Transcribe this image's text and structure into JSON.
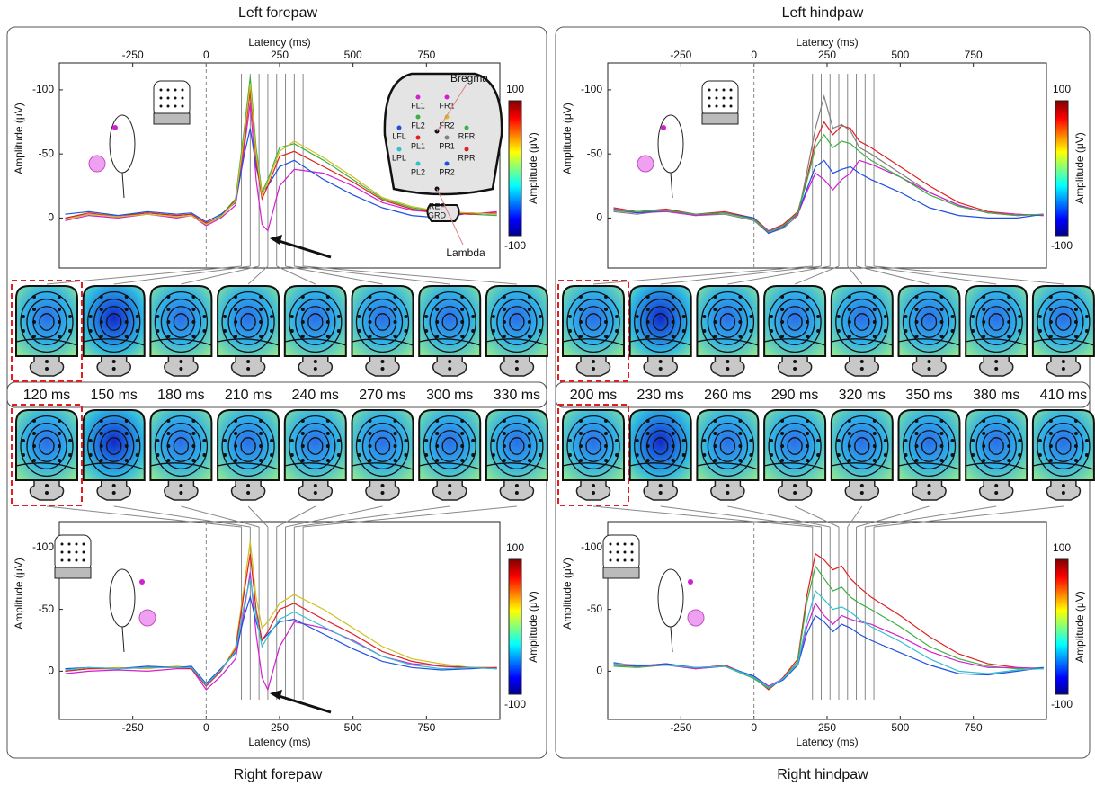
{
  "chart_data": [
    {
      "type": "line",
      "title": "Left forepaw",
      "xlabel": "Latency (ms)",
      "ylabel": "Amplitude (μV)",
      "xlim": [
        -500,
        1000
      ],
      "ylim": [
        -121,
        39
      ],
      "y_inverted": true,
      "xticks": [
        -250,
        0,
        250,
        500,
        750
      ],
      "yticks": [
        -100,
        -50,
        0
      ],
      "x": [
        -480,
        -400,
        -300,
        -200,
        -100,
        -50,
        0,
        50,
        100,
        130,
        150,
        170,
        190,
        210,
        250,
        300,
        400,
        500,
        600,
        700,
        800,
        900,
        990
      ],
      "series": [
        {
          "color": "#3cb043",
          "values": [
            0,
            -3,
            -2,
            -4,
            -2,
            -3,
            5,
            -2,
            -15,
            -70,
            -110,
            -55,
            -20,
            -30,
            -55,
            -58,
            -45,
            -30,
            -15,
            -8,
            -5,
            -3,
            -2
          ]
        },
        {
          "color": "#d020d0",
          "values": [
            2,
            -2,
            0,
            -3,
            0,
            -2,
            6,
            0,
            -10,
            -55,
            -90,
            -30,
            5,
            10,
            -25,
            -38,
            -35,
            -25,
            -12,
            -6,
            -4,
            -3,
            -5
          ]
        },
        {
          "color": "#2050e0",
          "values": [
            -3,
            -5,
            -2,
            -5,
            -3,
            -4,
            3,
            -3,
            -12,
            -50,
            -70,
            -40,
            -20,
            -25,
            -40,
            -45,
            -30,
            -18,
            -8,
            -2,
            0,
            -4,
            -3
          ]
        },
        {
          "color": "#e02020",
          "values": [
            0,
            -4,
            -1,
            -4,
            -2,
            -3,
            4,
            -1,
            -14,
            -60,
            -100,
            -45,
            -15,
            -25,
            -48,
            -52,
            -40,
            -28,
            -14,
            -7,
            -4,
            -3,
            -4
          ]
        },
        {
          "color": "#d0c020",
          "values": [
            1,
            -3,
            -1,
            -3,
            -1,
            -2,
            5,
            -1,
            -13,
            -65,
            -105,
            -50,
            -18,
            -28,
            -52,
            -60,
            -47,
            -32,
            -16,
            -9,
            -5,
            -4,
            -3
          ]
        }
      ],
      "colorbar": {
        "label": "Amplitude (μV)",
        "clim": [
          -100,
          100
        ],
        "ticks": [
          100,
          -100
        ]
      },
      "maps": [
        {
          "value": 120,
          "label": "120 ms"
        },
        {
          "value": 150,
          "label": "150 ms"
        },
        {
          "value": 180,
          "label": "180 ms"
        },
        {
          "value": 210,
          "label": "210 ms"
        },
        {
          "value": 240,
          "label": "240 ms"
        },
        {
          "value": 270,
          "label": "270 ms"
        },
        {
          "value": 300,
          "label": "300 ms"
        },
        {
          "value": 330,
          "label": "330 ms"
        }
      ],
      "electrodes": [
        {
          "name": "FL1",
          "color": "#d020d0"
        },
        {
          "name": "FR1",
          "color": "#d020d0"
        },
        {
          "name": "FL2",
          "color": "#3cb043"
        },
        {
          "name": "FR2",
          "color": "#d0c020"
        },
        {
          "name": "LFL",
          "color": "#2050e0"
        },
        {
          "name": "RFR",
          "color": "#3cb043"
        },
        {
          "name": "PL1",
          "color": "#e02020"
        },
        {
          "name": "PR1",
          "color": "#808080"
        },
        {
          "name": "LPL",
          "color": "#30c0d0"
        },
        {
          "name": "RPR",
          "color": "#e02020"
        },
        {
          "name": "PL2",
          "color": "#30c0d0"
        },
        {
          "name": "PR2",
          "color": "#2050e0"
        }
      ],
      "landmarks": [
        "Bregma",
        "Lambda",
        "REF",
        "GRD"
      ]
    },
    {
      "type": "line",
      "title": "Left hindpaw",
      "xlabel": "Latency (ms)",
      "ylabel": "Amplitude (μV)",
      "xlim": [
        -500,
        1000
      ],
      "ylim": [
        -121,
        39
      ],
      "y_inverted": true,
      "xticks": [
        -250,
        0,
        250,
        500,
        750
      ],
      "yticks": [
        -100,
        -50,
        0
      ],
      "x": [
        -480,
        -400,
        -300,
        -200,
        -100,
        0,
        50,
        100,
        150,
        180,
        210,
        240,
        270,
        300,
        330,
        360,
        400,
        500,
        600,
        700,
        800,
        900,
        990
      ],
      "series": [
        {
          "color": "#e02020",
          "values": [
            -8,
            -5,
            -7,
            -3,
            -5,
            0,
            10,
            5,
            -5,
            -30,
            -60,
            -75,
            -65,
            -72,
            -70,
            -60,
            -55,
            -40,
            -25,
            -12,
            -5,
            -3,
            -2
          ]
        },
        {
          "color": "#808080",
          "values": [
            -5,
            -3,
            -6,
            -2,
            -3,
            2,
            12,
            8,
            -2,
            -35,
            -70,
            -95,
            -70,
            -73,
            -68,
            -55,
            -50,
            -35,
            -20,
            -10,
            -4,
            -2,
            -3
          ]
        },
        {
          "color": "#d020d0",
          "values": [
            -6,
            -4,
            -5,
            -2,
            -4,
            1,
            10,
            6,
            -3,
            -20,
            -35,
            -30,
            -22,
            -30,
            -35,
            -45,
            -42,
            -32,
            -20,
            -10,
            -4,
            -3,
            -2
          ]
        },
        {
          "color": "#2050e0",
          "values": [
            -7,
            -4,
            -6,
            -3,
            -4,
            0,
            12,
            7,
            -4,
            -22,
            -40,
            -45,
            -35,
            -38,
            -40,
            -35,
            -30,
            -20,
            -8,
            -2,
            0,
            0,
            -3
          ]
        },
        {
          "color": "#3cb043",
          "values": [
            -6,
            -5,
            -6,
            -3,
            -4,
            1,
            11,
            6,
            -4,
            -28,
            -55,
            -65,
            -55,
            -60,
            -58,
            -52,
            -45,
            -32,
            -18,
            -9,
            -4,
            -2,
            -3
          ]
        }
      ],
      "colorbar": {
        "label": "Amplitude (μV)",
        "clim": [
          -100,
          100
        ],
        "ticks": [
          100,
          -100
        ]
      },
      "maps": [
        {
          "value": 200,
          "label": "200 ms"
        },
        {
          "value": 230,
          "label": "230 ms"
        },
        {
          "value": 260,
          "label": "260 ms"
        },
        {
          "value": 290,
          "label": "290 ms"
        },
        {
          "value": 320,
          "label": "320 ms"
        },
        {
          "value": 350,
          "label": "350 ms"
        },
        {
          "value": 380,
          "label": "380 ms"
        },
        {
          "value": 410,
          "label": "410 ms"
        }
      ]
    },
    {
      "type": "line",
      "title": "Right forepaw",
      "xlabel": "Latency (ms)",
      "ylabel": "Amplitude (μV)",
      "xlim": [
        -500,
        1000
      ],
      "ylim": [
        -121,
        39
      ],
      "y_inverted": true,
      "xticks": [
        -250,
        0,
        250,
        500,
        750
      ],
      "yticks": [
        -100,
        -50,
        0
      ],
      "x": [
        -480,
        -400,
        -300,
        -200,
        -100,
        -50,
        0,
        50,
        100,
        130,
        150,
        170,
        190,
        210,
        250,
        300,
        400,
        500,
        600,
        700,
        800,
        900,
        990
      ],
      "series": [
        {
          "color": "#d0c020",
          "values": [
            0,
            -2,
            -3,
            -2,
            -4,
            -3,
            12,
            0,
            -20,
            -70,
            -105,
            -60,
            -35,
            -40,
            -55,
            -62,
            -50,
            -35,
            -20,
            -10,
            -6,
            -3,
            -2
          ]
        },
        {
          "color": "#d020d0",
          "values": [
            2,
            0,
            -1,
            0,
            -2,
            -2,
            15,
            4,
            -10,
            -50,
            -80,
            -30,
            5,
            15,
            -20,
            -40,
            -35,
            -25,
            -12,
            -6,
            -4,
            -3,
            -2
          ]
        },
        {
          "color": "#2050e0",
          "values": [
            -2,
            -3,
            -2,
            -4,
            -3,
            -4,
            10,
            -2,
            -15,
            -45,
            -60,
            -40,
            -25,
            -30,
            -40,
            -42,
            -30,
            -18,
            -8,
            -3,
            -1,
            -2,
            -3
          ]
        },
        {
          "color": "#e02020",
          "values": [
            0,
            -2,
            -2,
            -3,
            -3,
            -2,
            12,
            0,
            -18,
            -65,
            -95,
            -50,
            -25,
            -32,
            -50,
            -55,
            -42,
            -30,
            -16,
            -8,
            -4,
            -3,
            -3
          ]
        },
        {
          "color": "#30c0d0",
          "values": [
            -1,
            -3,
            -2,
            -3,
            -3,
            -3,
            11,
            -1,
            -16,
            -55,
            -75,
            -45,
            -20,
            -28,
            -42,
            -48,
            -36,
            -24,
            -12,
            -5,
            -2,
            -3,
            -2
          ]
        }
      ],
      "colorbar": {
        "label": "Amplitude (μV)",
        "clim": [
          -100,
          100
        ],
        "ticks": [
          100,
          -100
        ]
      }
    },
    {
      "type": "line",
      "title": "Right hindpaw",
      "xlabel": "Latency (ms)",
      "ylabel": "Amplitude (μV)",
      "xlim": [
        -500,
        1000
      ],
      "ylim": [
        -121,
        39
      ],
      "y_inverted": true,
      "xticks": [
        -250,
        0,
        250,
        500,
        750
      ],
      "yticks": [
        -100,
        -50,
        0
      ],
      "x": [
        -480,
        -400,
        -300,
        -200,
        -100,
        0,
        50,
        100,
        150,
        180,
        210,
        240,
        270,
        300,
        330,
        360,
        400,
        500,
        600,
        700,
        800,
        900,
        990
      ],
      "series": [
        {
          "color": "#e02020",
          "values": [
            -5,
            -4,
            -6,
            -2,
            -5,
            5,
            15,
            5,
            -10,
            -60,
            -95,
            -90,
            -82,
            -85,
            -75,
            -68,
            -60,
            -45,
            -28,
            -14,
            -6,
            -3,
            -2
          ]
        },
        {
          "color": "#3cb043",
          "values": [
            -4,
            -3,
            -5,
            -2,
            -4,
            6,
            14,
            6,
            -8,
            -55,
            -85,
            -75,
            -65,
            -68,
            -60,
            -55,
            -50,
            -36,
            -20,
            -10,
            -4,
            -2,
            -3
          ]
        },
        {
          "color": "#d020d0",
          "values": [
            -6,
            -4,
            -5,
            -2,
            -4,
            4,
            12,
            6,
            -6,
            -35,
            -55,
            -45,
            -38,
            -45,
            -42,
            -40,
            -38,
            -28,
            -16,
            -8,
            -3,
            -3,
            -2
          ]
        },
        {
          "color": "#2050e0",
          "values": [
            -7,
            -4,
            -6,
            -3,
            -4,
            4,
            13,
            7,
            -5,
            -30,
            -45,
            -40,
            -32,
            -38,
            -35,
            -30,
            -25,
            -15,
            -5,
            2,
            3,
            0,
            -3
          ]
        },
        {
          "color": "#30c0d0",
          "values": [
            -6,
            -5,
            -5,
            -3,
            -4,
            5,
            13,
            6,
            -6,
            -40,
            -65,
            -58,
            -50,
            -52,
            -48,
            -42,
            -36,
            -24,
            -10,
            0,
            2,
            -1,
            -2
          ]
        }
      ],
      "colorbar": {
        "label": "Amplitude (μV)",
        "clim": [
          -100,
          100
        ],
        "ticks": [
          100,
          -100
        ]
      }
    }
  ]
}
